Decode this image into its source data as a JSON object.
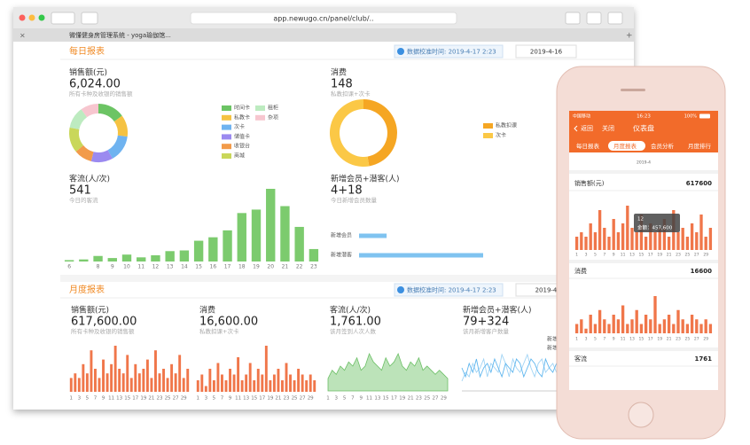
{
  "browser": {
    "url": "app.newugo.cn/panel/club/..",
    "tab": "微懂健身房管理系统 - yoga瑜伽馆..."
  },
  "daily": {
    "title": "每日报表",
    "sync": "数据校准时间: 2019-4-17 2:23",
    "date": "2019-4-16",
    "sales": {
      "label": "销售额(元)",
      "value": "6,024.00",
      "note": "所有卡种及收银的销售额",
      "chart_data": {
        "type": "pie",
        "categories": [
          "时间卡",
          "私教卡",
          "次卡",
          "储值卡",
          "收银台",
          "商城",
          "租柜",
          "杂项"
        ],
        "values": [
          15,
          12,
          15,
          12,
          10,
          14,
          12,
          10
        ],
        "colors": [
          "#6cc464",
          "#f5c242",
          "#6fb3f0",
          "#9b8af0",
          "#f29b4a",
          "#c9d75a",
          "#bdebc0",
          "#f7c6cf"
        ]
      }
    },
    "consume": {
      "label": "消费",
      "value": "148",
      "note": "私教扣课+次卡",
      "chart_data": {
        "type": "pie",
        "categories": [
          "私教扣课",
          "次卡"
        ],
        "values": [
          70,
          78
        ],
        "colors": [
          "#f5a623",
          "#fbc846"
        ]
      }
    },
    "traffic": {
      "label": "客流(人/次)",
      "value": "541",
      "note": "今日的客流",
      "chart_data": {
        "type": "bar",
        "categories": [
          6,
          null,
          8,
          9,
          10,
          11,
          12,
          13,
          14,
          15,
          16,
          17,
          18,
          19,
          20,
          21,
          22,
          23
        ],
        "values": [
          2,
          3,
          8,
          5,
          10,
          6,
          9,
          15,
          16,
          30,
          35,
          45,
          70,
          75,
          105,
          80,
          50,
          18
        ],
        "color": "#7ccb6e"
      }
    },
    "members": {
      "label": "新增会员+潜客(人)",
      "value": "4+18",
      "note": "今日新增会员数量",
      "chart_data": {
        "type": "hbar",
        "categories": [
          "新增会员",
          "新增潜客"
        ],
        "values": [
          4,
          18
        ],
        "color": "#7fc3f0"
      }
    }
  },
  "monthly": {
    "title": "月度报表",
    "sync": "数据校准时间: 2019-4-17 2:23",
    "date": "2019-4",
    "days": [
      1,
      null,
      3,
      null,
      5,
      null,
      7,
      null,
      9,
      null,
      11,
      null,
      13,
      null,
      15,
      null,
      17,
      null,
      19,
      null,
      21,
      null,
      23,
      null,
      25,
      null,
      27,
      null,
      29,
      null
    ],
    "sales": {
      "label": "销售额(元)",
      "value": "617,600.00",
      "note": "所有卡种及收银的销售额",
      "chart_data": {
        "type": "bar",
        "color": "#f0764a",
        "values": [
          3,
          4,
          3,
          6,
          4,
          9,
          5,
          3,
          7,
          4,
          6,
          10,
          5,
          4,
          8,
          3,
          6,
          4,
          5,
          7,
          3,
          9,
          4,
          5,
          3,
          6,
          4,
          8,
          3,
          5
        ]
      }
    },
    "consume": {
      "label": "消费",
      "value": "16,600.00",
      "note": "私教扣课+次卡",
      "chart_data": {
        "type": "bar",
        "color": "#f0764a",
        "values": [
          2,
          3,
          1,
          4,
          2,
          5,
          3,
          2,
          4,
          3,
          6,
          2,
          3,
          5,
          2,
          4,
          3,
          8,
          2,
          3,
          4,
          2,
          5,
          3,
          2,
          4,
          3,
          2,
          3,
          2
        ]
      }
    },
    "traffic": {
      "label": "客流(人/次)",
      "value": "1,761.00",
      "note": "该月签到人次人数",
      "chart_data": {
        "type": "area",
        "color": "#8fd18a",
        "values": [
          3,
          5,
          4,
          6,
          5,
          7,
          6,
          8,
          5,
          6,
          9,
          7,
          6,
          5,
          8,
          6,
          7,
          9,
          6,
          5,
          7,
          6,
          8,
          5,
          6,
          5,
          4,
          5,
          4,
          3
        ]
      }
    },
    "members": {
      "label": "新增会员+潜客(人)",
      "value": "79+324",
      "note": "该月新增客户数量",
      "chart_data": {
        "type": "line",
        "series": [
          {
            "name": "新增会员",
            "color": "#9fd3f5",
            "values": [
              2,
              4,
              3,
              6,
              4,
              5,
              7,
              3,
              6,
              5,
              4,
              8,
              6,
              3,
              7,
              5,
              4,
              6,
              8,
              5,
              3,
              6,
              7,
              4,
              5,
              6,
              4,
              7,
              5,
              6
            ]
          },
          {
            "name": "新增潜客",
            "color": "#5fb6ee",
            "values": [
              5,
              3,
              6,
              4,
              7,
              3,
              5,
              6,
              4,
              7,
              5,
              3,
              6,
              5,
              4,
              7,
              6,
              3,
              5,
              7,
              6,
              4,
              3,
              7,
              5,
              4,
              6,
              3,
              7,
              4
            ]
          }
        ]
      }
    }
  },
  "phone": {
    "status": {
      "carrier": "中国移动",
      "time": "16:23",
      "battery": "100%"
    },
    "nav": {
      "back": "返回",
      "close": "关闭",
      "title": "仪表盘"
    },
    "tabs": [
      "每日报表",
      "月度报表",
      "会员分析",
      "月度排行"
    ],
    "month": "2019-4",
    "sales": {
      "label": "销售额(元)",
      "value": 617600
    },
    "tooltip": {
      "day": "12",
      "text": "金额：457,600"
    },
    "consume": {
      "label": "消费",
      "value": 16600
    },
    "traffic": {
      "label": "客流",
      "value": 1761
    }
  }
}
